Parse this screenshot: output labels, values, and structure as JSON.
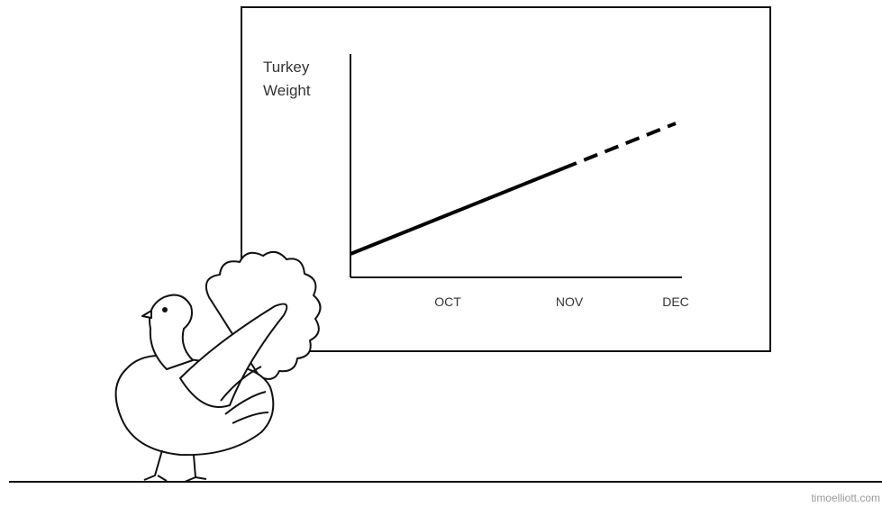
{
  "board": {
    "y_label_lines": [
      "Turkey",
      "Weight"
    ],
    "x_labels": [
      "OCT",
      "NOV",
      "DEC"
    ]
  },
  "credit": "timoelliott.com"
}
